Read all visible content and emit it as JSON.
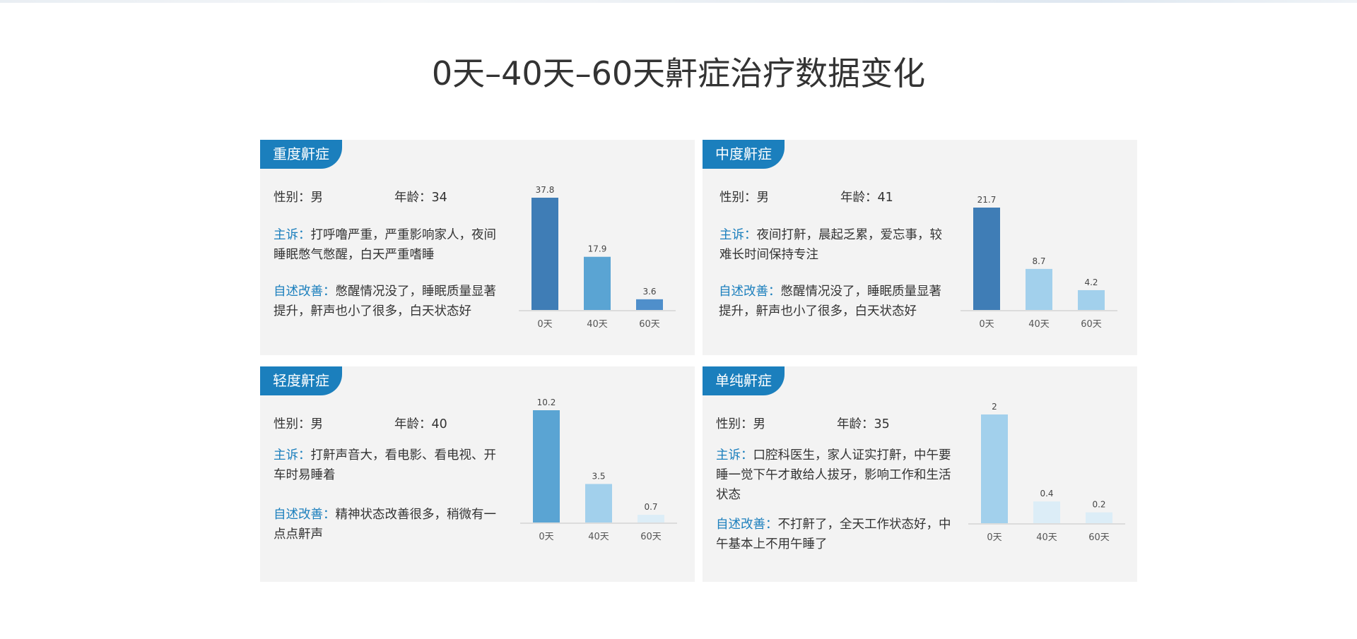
{
  "page_title": "0天–40天–60天鼾症治疗数据变化",
  "cards": [
    {
      "tab": "重度鼾症",
      "gender_label": "性别：",
      "gender": "男",
      "age_label": "年龄：",
      "age": "34",
      "complaint_label": "主诉：",
      "complaint": "打呼噜严重，严重影响家人，夜间睡眠憋气憋醒，白天严重嗜睡",
      "improve_label": "自述改善：",
      "improve": "憋醒情况没了，睡眠质量显著提升，鼾声也小了很多，白天状态好"
    },
    {
      "tab": "中度鼾症",
      "gender_label": "性别：",
      "gender": "男",
      "age_label": "年龄：",
      "age": "41",
      "complaint_label": "主诉：",
      "complaint": "夜间打鼾，晨起乏累，爱忘事，较难长时间保持专注",
      "improve_label": "自述改善：",
      "improve": "憋醒情况没了，睡眠质量显著提升，鼾声也小了很多，白天状态好"
    },
    {
      "tab": "轻度鼾症",
      "gender_label": "性别：",
      "gender": "男",
      "age_label": "年龄：",
      "age": "40",
      "complaint_label": "主诉：",
      "complaint": "打鼾声音大，看电影、看电视、开车时易睡着",
      "improve_label": "自述改善：",
      "improve": "精神状态改善很多，稍微有一点点鼾声"
    },
    {
      "tab": "单纯鼾症",
      "gender_label": "性别：",
      "gender": "男",
      "age_label": "年龄：",
      "age": "35",
      "complaint_label": "主诉：",
      "complaint": "口腔科医生，家人证实打鼾，中午要睡一觉下午才敢给人拔牙，影响工作和生活状态",
      "improve_label": "自述改善：",
      "improve": "不打鼾了，全天工作状态好，中午基本上不用午睡了"
    }
  ],
  "chart_data": [
    {
      "type": "bar",
      "categories": [
        "0天",
        "40天",
        "60天"
      ],
      "values": [
        37.8,
        17.9,
        3.6
      ],
      "colors": [
        "#3f7db6",
        "#5aa4d3",
        "#4f8fcb"
      ]
    },
    {
      "type": "bar",
      "categories": [
        "0天",
        "40天",
        "60天"
      ],
      "values": [
        21.7,
        8.7,
        4.2
      ],
      "colors": [
        "#3f7db6",
        "#a2d0ec",
        "#a2d0ec"
      ]
    },
    {
      "type": "bar",
      "categories": [
        "0天",
        "40天",
        "60天"
      ],
      "values": [
        10.2,
        3.5,
        0.7
      ],
      "colors": [
        "#5aa4d3",
        "#a2d0ec",
        "#dcedf7"
      ]
    },
    {
      "type": "bar",
      "categories": [
        "0天",
        "40天",
        "60天"
      ],
      "values": [
        2,
        0.4,
        0.2
      ],
      "colors": [
        "#a2d0ec",
        "#dcedf7",
        "#dcedf7"
      ]
    }
  ],
  "colors": {
    "accent": "#1b7fbd",
    "card_bg": "#f3f3f3",
    "text": "#333333"
  }
}
